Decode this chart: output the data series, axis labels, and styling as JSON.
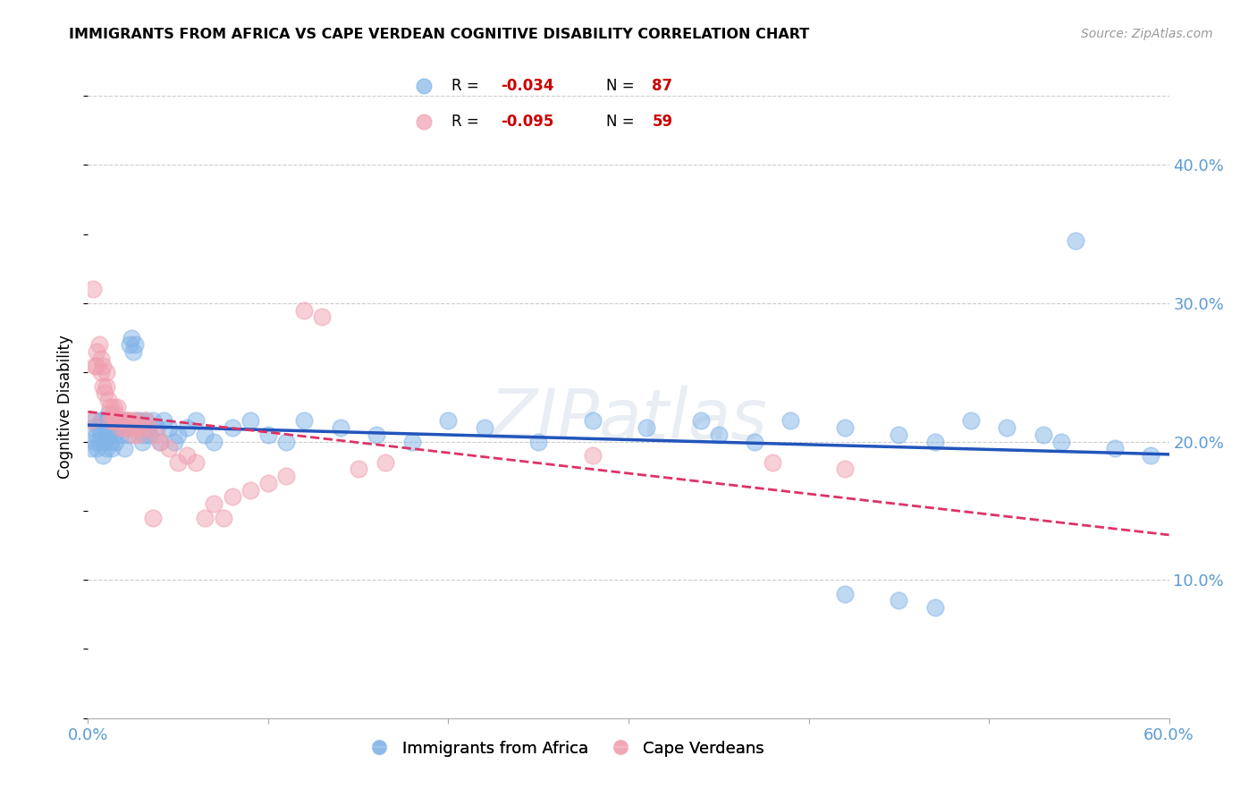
{
  "title": "IMMIGRANTS FROM AFRICA VS CAPE VERDEAN COGNITIVE DISABILITY CORRELATION CHART",
  "source": "Source: ZipAtlas.com",
  "ylabel": "Cognitive Disability",
  "right_yticks": [
    "40.0%",
    "30.0%",
    "20.0%",
    "10.0%"
  ],
  "right_ytick_vals": [
    0.4,
    0.3,
    0.2,
    0.1
  ],
  "xlim": [
    0.0,
    0.6
  ],
  "ylim": [
    0.0,
    0.45
  ],
  "blue_color": "#82b4e8",
  "pink_color": "#f0a0b0",
  "trendline_blue_color": "#2255bb",
  "trendline_pink_color": "#dd3366",
  "axis_color": "#5b9bd5",
  "grid_color": "#cccccc",
  "background_color": "#ffffff",
  "watermark_text": "ZIPatlas",
  "legend_r1_label": "R = -0.034",
  "legend_n1_label": "N = 87",
  "legend_r2_label": "R = -0.095",
  "legend_n2_label": "N = 59",
  "legend_r_color": "#cc0000",
  "legend_n_color": "#000000",
  "bottom_legend_label1": "Immigrants from Africa",
  "bottom_legend_label2": "Cape Verdeans",
  "blue_scatter_x": [
    0.002,
    0.003,
    0.004,
    0.004,
    0.005,
    0.005,
    0.006,
    0.006,
    0.007,
    0.007,
    0.008,
    0.008,
    0.009,
    0.009,
    0.01,
    0.01,
    0.011,
    0.011,
    0.012,
    0.012,
    0.013,
    0.013,
    0.014,
    0.014,
    0.015,
    0.015,
    0.016,
    0.016,
    0.017,
    0.018,
    0.019,
    0.02,
    0.021,
    0.022,
    0.023,
    0.024,
    0.025,
    0.026,
    0.027,
    0.028,
    0.029,
    0.03,
    0.031,
    0.032,
    0.033,
    0.034,
    0.036,
    0.038,
    0.04,
    0.042,
    0.045,
    0.048,
    0.05,
    0.055,
    0.06,
    0.065,
    0.07,
    0.08,
    0.09,
    0.1,
    0.11,
    0.12,
    0.14,
    0.16,
    0.18,
    0.2,
    0.22,
    0.25,
    0.28,
    0.31,
    0.34,
    0.35,
    0.37,
    0.39,
    0.42,
    0.45,
    0.47,
    0.49,
    0.51,
    0.53,
    0.42,
    0.45,
    0.47,
    0.54,
    0.548,
    0.57,
    0.59
  ],
  "blue_scatter_y": [
    0.195,
    0.21,
    0.2,
    0.215,
    0.205,
    0.195,
    0.21,
    0.2,
    0.215,
    0.205,
    0.19,
    0.215,
    0.2,
    0.21,
    0.195,
    0.215,
    0.205,
    0.22,
    0.2,
    0.215,
    0.21,
    0.195,
    0.215,
    0.205,
    0.215,
    0.2,
    0.21,
    0.215,
    0.21,
    0.205,
    0.21,
    0.195,
    0.215,
    0.205,
    0.27,
    0.275,
    0.265,
    0.27,
    0.215,
    0.21,
    0.215,
    0.2,
    0.205,
    0.215,
    0.21,
    0.205,
    0.215,
    0.21,
    0.2,
    0.215,
    0.21,
    0.2,
    0.205,
    0.21,
    0.215,
    0.205,
    0.2,
    0.21,
    0.215,
    0.205,
    0.2,
    0.215,
    0.21,
    0.205,
    0.2,
    0.215,
    0.21,
    0.2,
    0.215,
    0.21,
    0.215,
    0.205,
    0.2,
    0.215,
    0.21,
    0.205,
    0.2,
    0.215,
    0.21,
    0.205,
    0.09,
    0.085,
    0.08,
    0.2,
    0.345,
    0.195,
    0.19
  ],
  "pink_scatter_x": [
    0.002,
    0.003,
    0.004,
    0.005,
    0.005,
    0.006,
    0.007,
    0.007,
    0.008,
    0.008,
    0.009,
    0.01,
    0.01,
    0.011,
    0.012,
    0.012,
    0.013,
    0.014,
    0.014,
    0.015,
    0.015,
    0.016,
    0.016,
    0.017,
    0.018,
    0.019,
    0.02,
    0.021,
    0.022,
    0.023,
    0.024,
    0.025,
    0.026,
    0.027,
    0.028,
    0.03,
    0.032,
    0.034,
    0.036,
    0.038,
    0.04,
    0.045,
    0.05,
    0.055,
    0.06,
    0.065,
    0.07,
    0.075,
    0.08,
    0.09,
    0.1,
    0.11,
    0.12,
    0.13,
    0.15,
    0.165,
    0.28,
    0.38,
    0.42
  ],
  "pink_scatter_y": [
    0.215,
    0.31,
    0.255,
    0.265,
    0.255,
    0.27,
    0.25,
    0.26,
    0.24,
    0.255,
    0.235,
    0.24,
    0.25,
    0.23,
    0.225,
    0.215,
    0.22,
    0.215,
    0.225,
    0.215,
    0.22,
    0.215,
    0.225,
    0.215,
    0.21,
    0.215,
    0.21,
    0.215,
    0.215,
    0.21,
    0.215,
    0.205,
    0.215,
    0.21,
    0.205,
    0.21,
    0.215,
    0.21,
    0.145,
    0.205,
    0.2,
    0.195,
    0.185,
    0.19,
    0.185,
    0.145,
    0.155,
    0.145,
    0.16,
    0.165,
    0.17,
    0.175,
    0.295,
    0.29,
    0.18,
    0.185,
    0.19,
    0.185,
    0.18
  ]
}
